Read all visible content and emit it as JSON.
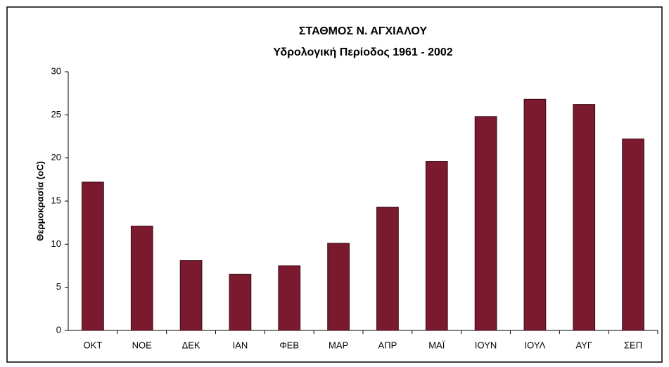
{
  "chart_data": {
    "type": "bar",
    "title": "ΣΤΑΘΜΟΣ Ν. ΑΓΧΙΑΛΟΥ",
    "subtitle": "Υδρολογική Περίοδος 1961 - 2002",
    "y_label": "Θερμοκρασία (oC)",
    "categories": [
      "ΟΚΤ",
      "ΝΟΕ",
      "ΔΕΚ",
      "ΙΑΝ",
      "ΦΕΒ",
      "ΜΑΡ",
      "ΑΠΡ",
      "ΜΑΪ",
      "ΙΟΥΝ",
      "ΙΟΥΛ",
      "ΑΥΓ",
      "ΣΕΠ"
    ],
    "values": [
      17.2,
      12.1,
      8.1,
      6.5,
      7.5,
      10.1,
      14.3,
      19.6,
      24.8,
      26.8,
      26.2,
      22.2
    ],
    "color": "#7b1a2e",
    "ylim": [
      0,
      30
    ],
    "yticks": [
      0,
      5,
      10,
      15,
      20,
      25,
      30
    ],
    "grid": false
  }
}
